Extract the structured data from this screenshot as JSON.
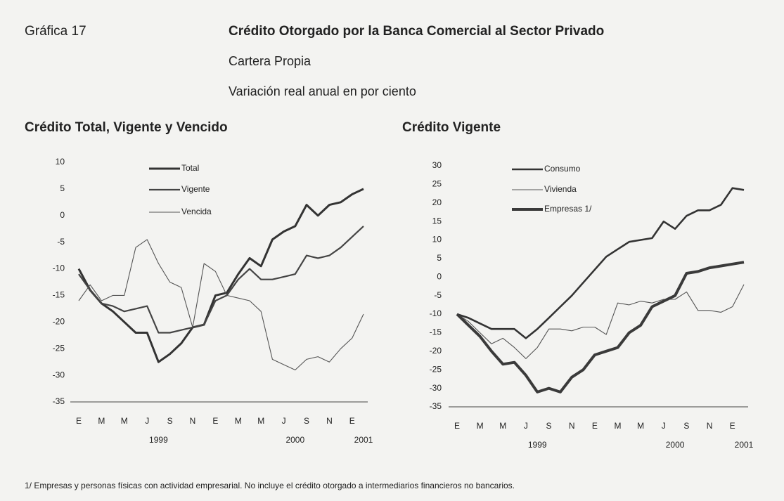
{
  "header": {
    "label": "Gráfica 17",
    "title": "Crédito Otorgado por la Banca Comercial al Sector Privado",
    "subtitles": [
      "Cartera Propia",
      "Variación real anual en por ciento"
    ]
  },
  "footnote": "1/ Empresas y personas físicas con actividad empresarial. No incluye el crédito otorgado a intermediarios financieros no bancarios.",
  "chart_data": [
    {
      "type": "line",
      "title": "Crédito Total, Vigente y Vencido",
      "categories": [
        "E",
        null,
        "M",
        null,
        "M",
        null,
        "J",
        null,
        "S",
        null,
        "N",
        null,
        "E",
        null,
        "M",
        null,
        "M",
        null,
        "J",
        null,
        "S",
        null,
        "N",
        null,
        "E",
        null
      ],
      "year_labels": [
        null,
        null,
        null,
        null,
        null,
        null,
        null,
        "1999",
        null,
        null,
        null,
        null,
        null,
        null,
        null,
        null,
        null,
        null,
        null,
        "2000",
        null,
        null,
        null,
        null,
        null,
        "2001"
      ],
      "ylim": [
        -35,
        10
      ],
      "yticks": [
        10,
        5,
        0,
        -5,
        -10,
        -15,
        -20,
        -25,
        -30,
        -35
      ],
      "series": [
        {
          "name": "Total",
          "color": "#333333",
          "width": 3,
          "values": [
            -10,
            -14,
            -16.5,
            -18,
            -20,
            -22,
            -22,
            -27.5,
            -26,
            -24,
            -21,
            -20.5,
            -15,
            -14.5,
            -11,
            -8,
            -9.5,
            -4.5,
            -3,
            -2,
            2,
            0,
            2,
            2.5,
            4,
            5
          ]
        },
        {
          "name": "Vigente",
          "color": "#444444",
          "width": 2.2,
          "values": [
            -11,
            -14,
            -16.5,
            -17,
            -18,
            -17.5,
            -17,
            -22,
            -22,
            -21.5,
            -21,
            -20.5,
            -16,
            -15,
            -12,
            -10,
            -12,
            -12,
            -11.5,
            -11,
            -7.5,
            -8,
            -7.5,
            -6,
            -4,
            -2
          ]
        },
        {
          "name": "Vencida",
          "color": "#555555",
          "width": 1.1,
          "values": [
            -16,
            -13,
            -16,
            -15,
            -15,
            -6,
            -4.5,
            -9,
            -12.5,
            -13.5,
            -21,
            -9,
            -10.5,
            -15,
            -15.5,
            -16,
            -18,
            -27,
            -28,
            -29,
            -27,
            -26.5,
            -27.5,
            -25,
            -23,
            -18.5
          ]
        }
      ]
    },
    {
      "type": "line",
      "title": "Crédito Vigente",
      "categories": [
        "E",
        null,
        "M",
        null,
        "M",
        null,
        "J",
        null,
        "S",
        null,
        "N",
        null,
        "E",
        null,
        "M",
        null,
        "M",
        null,
        "J",
        null,
        "S",
        null,
        "N",
        null,
        "E",
        null
      ],
      "year_labels": [
        null,
        null,
        null,
        null,
        null,
        null,
        null,
        "1999",
        null,
        null,
        null,
        null,
        null,
        null,
        null,
        null,
        null,
        null,
        null,
        "2000",
        null,
        null,
        null,
        null,
        null,
        "2001"
      ],
      "ylim": [
        -35,
        30
      ],
      "yticks": [
        30,
        25,
        20,
        15,
        10,
        5,
        0,
        -5,
        -10,
        -15,
        -20,
        -25,
        -30,
        -35
      ],
      "series": [
        {
          "name": "Consumo",
          "color": "#333333",
          "width": 2.6,
          "values": [
            -10,
            -11,
            -12.5,
            -14,
            -14,
            -14,
            -16.5,
            -14,
            -11,
            -8,
            -5,
            -1.5,
            2,
            5.5,
            7.5,
            9.5,
            10,
            10.5,
            15,
            13,
            16.5,
            18,
            18,
            19.5,
            24,
            23.5
          ]
        },
        {
          "name": "Vivienda",
          "color": "#555555",
          "width": 1.1,
          "values": [
            -10,
            -12,
            -15,
            -18,
            -16.5,
            -19,
            -22,
            -19,
            -14,
            -14,
            -14.5,
            -13.5,
            -13.5,
            -15.5,
            -7,
            -7.5,
            -6.5,
            -7,
            -6,
            -6,
            -4,
            -9,
            -9,
            -9.5,
            -8,
            -2
          ]
        },
        {
          "name": "Empresas 1/",
          "color": "#3a3a3a",
          "width": 4,
          "values": [
            -10,
            -13,
            -16,
            -20,
            -23.5,
            -23,
            -26.5,
            -31,
            -30,
            -31,
            -27,
            -25,
            -21,
            -20,
            -19,
            -15,
            -13,
            -8,
            -6.5,
            -5,
            1,
            1.5,
            2.5,
            3,
            3.5,
            4
          ]
        }
      ]
    }
  ]
}
